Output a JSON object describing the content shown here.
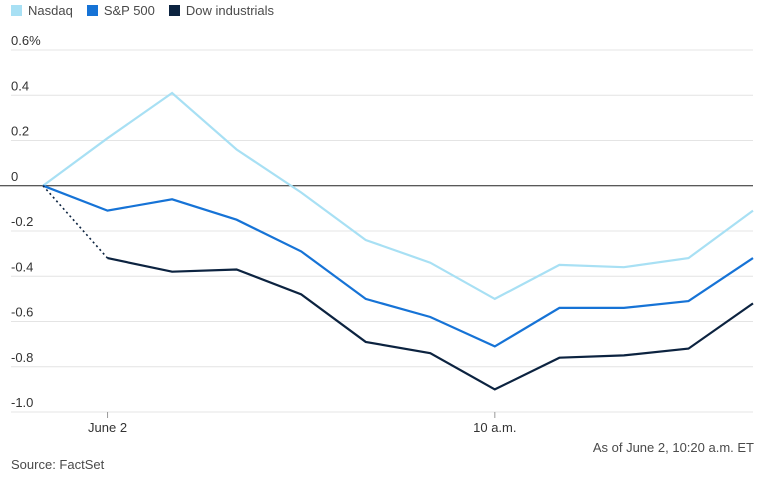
{
  "legend": [
    {
      "label": "Nasdaq",
      "color": "#a8e0f4"
    },
    {
      "label": "S&P 500",
      "color": "#1673d6"
    },
    {
      "label": "Dow industrials",
      "color": "#0c2340"
    }
  ],
  "note": "As of June 2, 10:20 a.m. ET",
  "source": "Source: FactSet",
  "chart_data": {
    "type": "line",
    "yticks": [
      {
        "value": 0.6,
        "label": "0.6%"
      },
      {
        "value": 0.4,
        "label": "0.4"
      },
      {
        "value": 0.2,
        "label": "0.2"
      },
      {
        "value": 0,
        "label": "0"
      },
      {
        "value": -0.2,
        "label": "-0.2"
      },
      {
        "value": -0.4,
        "label": "-0.4"
      },
      {
        "value": -0.6,
        "label": "-0.6"
      },
      {
        "value": -0.8,
        "label": "-0.8"
      },
      {
        "value": -1.0,
        "label": "-1.0"
      }
    ],
    "ylim": [
      -1.0,
      0.6
    ],
    "xlim": [
      0,
      11
    ],
    "xticks": [
      {
        "x": 1,
        "label": "June 2"
      },
      {
        "x": 7,
        "label": "10 a.m."
      }
    ],
    "grid": true,
    "legend_position": "top-left",
    "series": [
      {
        "name": "Nasdaq",
        "color": "#a8e0f4",
        "dotted_first_segment": false,
        "x": [
          0,
          1,
          2,
          3,
          4,
          5,
          6,
          7,
          8,
          9,
          10,
          11
        ],
        "y": [
          0,
          0.21,
          0.41,
          0.16,
          -0.03,
          -0.24,
          -0.34,
          -0.5,
          -0.35,
          -0.36,
          -0.32,
          -0.11
        ]
      },
      {
        "name": "S&P 500",
        "color": "#1673d6",
        "dotted_first_segment": false,
        "x": [
          0,
          1,
          2,
          3,
          4,
          5,
          6,
          7,
          8,
          9,
          10,
          11
        ],
        "y": [
          0,
          -0.11,
          -0.06,
          -0.15,
          -0.29,
          -0.5,
          -0.58,
          -0.71,
          -0.54,
          -0.54,
          -0.51,
          -0.32
        ]
      },
      {
        "name": "Dow industrials",
        "color": "#0c2340",
        "dotted_first_segment": true,
        "x": [
          0,
          1,
          2,
          3,
          4,
          5,
          6,
          7,
          8,
          9,
          10,
          11
        ],
        "y": [
          0,
          -0.32,
          -0.38,
          -0.37,
          -0.48,
          -0.69,
          -0.74,
          -0.9,
          -0.76,
          -0.75,
          -0.72,
          -0.52
        ]
      }
    ]
  }
}
